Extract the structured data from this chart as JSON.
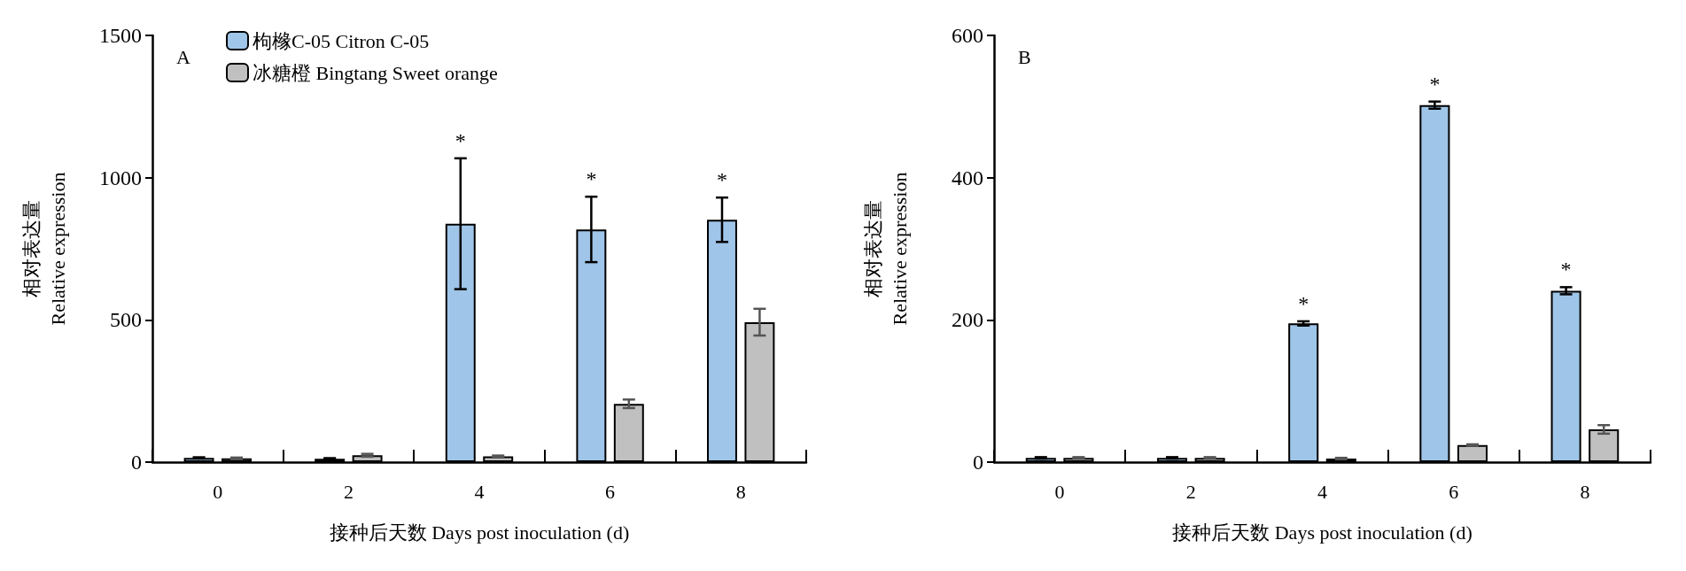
{
  "chart_data": [
    {
      "type": "bar",
      "title": "A",
      "xlabel": "接种后天数 Days post inoculation (d)",
      "ylabel": "相对表达量\nRelative expression",
      "categories": [
        "0",
        "2",
        "4",
        "6",
        "8"
      ],
      "series": [
        {
          "name": "枸橼C-05 Citron C-05",
          "color": "#9fc5e8",
          "values": [
            15,
            12,
            838,
            818,
            852
          ],
          "errors": [
            2,
            2,
            230,
            115,
            78
          ]
        },
        {
          "name": "冰糖橙 Bingtang Sweet orange",
          "color": "#c0c0c0",
          "values": [
            13,
            24,
            20,
            205,
            492
          ],
          "errors": [
            3,
            5,
            3,
            15,
            47
          ]
        }
      ],
      "ylim": [
        0,
        1500
      ],
      "yticks": [
        0,
        500,
        1000,
        1500
      ],
      "grid": false,
      "legend": "top left",
      "annotations": [
        "*",
        "*",
        "*"
      ]
    },
    {
      "type": "bar",
      "title": "B",
      "xlabel": "接种后天数 Days post inoculation (d)",
      "ylabel": "相对表达量\nRelative expression",
      "categories": [
        "0",
        "2",
        "4",
        "6",
        "8"
      ],
      "series": [
        {
          "color": "#9fc5e8",
          "values": [
            6,
            6,
            195,
            502,
            241
          ],
          "errors": [
            1,
            1,
            3,
            5,
            5
          ]
        },
        {
          "color": "#c0c0c0",
          "values": [
            6,
            6,
            5,
            24,
            46
          ],
          "errors": [
            1,
            1,
            1,
            1,
            6
          ]
        }
      ],
      "ylim": [
        0,
        600
      ],
      "yticks": [
        0,
        200,
        400,
        600
      ],
      "grid": false,
      "legend": false,
      "annotations": [
        "*",
        "*",
        "*"
      ]
    }
  ]
}
